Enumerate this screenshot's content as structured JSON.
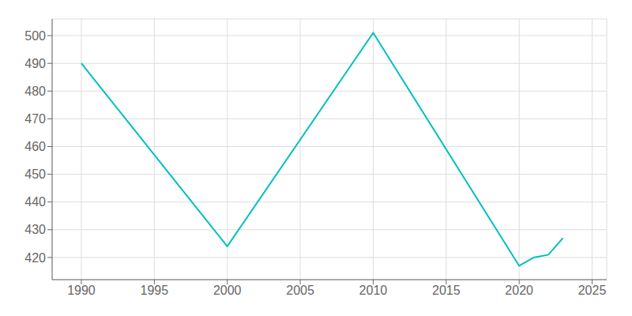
{
  "chart_data": {
    "type": "line",
    "x": [
      1990,
      2000,
      2010,
      2020,
      2021,
      2022,
      2023
    ],
    "values": [
      490,
      424,
      501,
      417,
      420,
      421,
      427
    ],
    "color": "#00BFBF",
    "xlim": [
      1988,
      2026
    ],
    "ylim": [
      412,
      506
    ],
    "xticks": [
      1990,
      1995,
      2000,
      2005,
      2010,
      2015,
      2020,
      2025
    ],
    "yticks": [
      420,
      430,
      440,
      450,
      460,
      470,
      480,
      490,
      500
    ],
    "grid": true
  }
}
